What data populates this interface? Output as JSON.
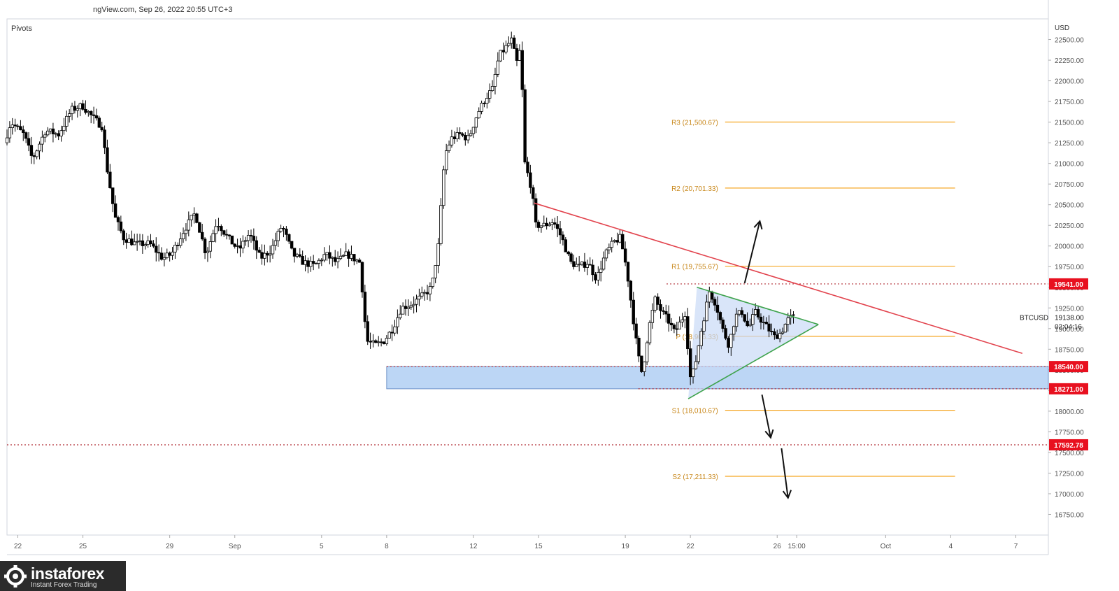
{
  "header": {
    "source_text": "ngView.com, Sep 26, 2022 20:55 UTC+3",
    "indicator": "Pivots"
  },
  "brand": {
    "name": "instaforex",
    "tagline": "Instant Forex Trading"
  },
  "colors": {
    "up": "#ffffff",
    "down": "#000000",
    "pivot": "#f5a623",
    "resistance_line": "#e2434d",
    "triangle_line": "#3fa34d",
    "zone_fill": "#bcd6f5",
    "level_badge": "#e8101f"
  },
  "chart_data": {
    "type": "candlestick",
    "symbol": "BTCUSD",
    "last_price": "19138.00",
    "countdown": "02:04:16",
    "currency": "USD",
    "y_ticks": [
      16750,
      17000,
      17250,
      17500,
      17750,
      18000,
      18250,
      18500,
      18750,
      19000,
      19250,
      19500,
      19750,
      20000,
      20250,
      20500,
      20750,
      21000,
      21250,
      21500,
      21750,
      22000,
      22250,
      22500
    ],
    "ylim": [
      16500,
      22750
    ],
    "x_ticks": [
      {
        "label": "22",
        "day": -1
      },
      {
        "label": "25",
        "day": 2
      },
      {
        "label": "29",
        "day": 6
      },
      {
        "label": "Sep",
        "day": 9
      },
      {
        "label": "5",
        "day": 13
      },
      {
        "label": "8",
        "day": 16
      },
      {
        "label": "12",
        "day": 20
      },
      {
        "label": "15",
        "day": 23
      },
      {
        "label": "19",
        "day": 27
      },
      {
        "label": "22",
        "day": 30
      },
      {
        "label": "26",
        "day": 34
      },
      {
        "label": "15:00",
        "day": 34.9
      },
      {
        "label": "Oct",
        "day": 39
      },
      {
        "label": "4",
        "day": 42
      },
      {
        "label": "7",
        "day": 45
      }
    ],
    "xlim": [
      -1.5,
      46.5
    ],
    "price_path": [
      [
        -1.5,
        21250
      ],
      [
        -1.2,
        21500
      ],
      [
        -0.6,
        21350
      ],
      [
        -0.2,
        21050
      ],
      [
        0.4,
        21400
      ],
      [
        1.0,
        21350
      ],
      [
        1.6,
        21650
      ],
      [
        2.1,
        21700
      ],
      [
        2.6,
        21550
      ],
      [
        3.0,
        21450
      ],
      [
        3.2,
        21000
      ],
      [
        3.6,
        20350
      ],
      [
        4.0,
        20100
      ],
      [
        4.6,
        20020
      ],
      [
        5.2,
        20030
      ],
      [
        5.8,
        19850
      ],
      [
        6.2,
        19900
      ],
      [
        6.8,
        20200
      ],
      [
        7.3,
        20400
      ],
      [
        7.8,
        19900
      ],
      [
        8.3,
        20300
      ],
      [
        8.8,
        20100
      ],
      [
        9.3,
        19950
      ],
      [
        9.8,
        20150
      ],
      [
        10.3,
        19850
      ],
      [
        10.8,
        19950
      ],
      [
        11.3,
        20250
      ],
      [
        11.8,
        19900
      ],
      [
        12.3,
        19800
      ],
      [
        12.8,
        19760
      ],
      [
        13.3,
        19900
      ],
      [
        13.8,
        19800
      ],
      [
        14.3,
        19900
      ],
      [
        14.6,
        19850
      ],
      [
        14.9,
        19800
      ],
      [
        15.2,
        18850
      ],
      [
        15.6,
        18800
      ],
      [
        16.0,
        18850
      ],
      [
        16.4,
        19000
      ],
      [
        16.8,
        19250
      ],
      [
        17.3,
        19300
      ],
      [
        17.8,
        19400
      ],
      [
        18.2,
        19500
      ],
      [
        18.5,
        20000
      ],
      [
        18.8,
        21100
      ],
      [
        19.1,
        21300
      ],
      [
        19.5,
        21350
      ],
      [
        19.9,
        21300
      ],
      [
        20.3,
        21600
      ],
      [
        20.7,
        21800
      ],
      [
        21.0,
        21900
      ],
      [
        21.3,
        22300
      ],
      [
        21.6,
        22400
      ],
      [
        21.9,
        22500
      ],
      [
        22.1,
        22200
      ],
      [
        22.3,
        22400
      ],
      [
        22.5,
        21000
      ],
      [
        22.8,
        20700
      ],
      [
        23.0,
        20250
      ],
      [
        23.4,
        20250
      ],
      [
        23.8,
        20300
      ],
      [
        24.2,
        20100
      ],
      [
        24.6,
        19800
      ],
      [
        25.0,
        19750
      ],
      [
        25.4,
        19800
      ],
      [
        25.8,
        19600
      ],
      [
        26.2,
        19900
      ],
      [
        26.6,
        20050
      ],
      [
        26.9,
        20100
      ],
      [
        27.2,
        19700
      ],
      [
        27.5,
        19100
      ],
      [
        27.7,
        18700
      ],
      [
        27.9,
        18450
      ],
      [
        28.2,
        19000
      ],
      [
        28.5,
        19350
      ],
      [
        28.8,
        19200
      ],
      [
        29.1,
        19100
      ],
      [
        29.4,
        18950
      ],
      [
        29.7,
        19100
      ],
      [
        29.9,
        19200
      ],
      [
        30.1,
        18400
      ],
      [
        30.3,
        18500
      ],
      [
        30.6,
        18950
      ],
      [
        30.8,
        19200
      ],
      [
        31.0,
        19450
      ],
      [
        31.3,
        19300
      ],
      [
        31.6,
        19000
      ],
      [
        31.9,
        18800
      ],
      [
        32.2,
        19150
      ],
      [
        32.5,
        19200
      ],
      [
        32.8,
        19000
      ],
      [
        33.1,
        19200
      ],
      [
        33.4,
        19100
      ],
      [
        33.7,
        19000
      ],
      [
        34.0,
        18900
      ],
      [
        34.3,
        18950
      ],
      [
        34.6,
        19100
      ],
      [
        34.8,
        19138
      ]
    ],
    "overlays": {
      "pivots": [
        {
          "label": "R3 (21,500.67)",
          "value": 21500.67
        },
        {
          "label": "R2 (20,701.33)",
          "value": 20701.33
        },
        {
          "label": "R1 (19,755.67)",
          "value": 19755.67
        },
        {
          "label": "P (18,906.33)",
          "value": 18906.33
        },
        {
          "label": "S1 (18,010.67)",
          "value": 18010.67
        },
        {
          "label": "S2 (17,211.33)",
          "value": 17211.33
        }
      ],
      "pivot_x_range": [
        31.6,
        42.2
      ],
      "price_levels": [
        {
          "label": "19541.00",
          "value": 19541.0,
          "from_day": 28.9
        },
        {
          "label": "18540.00",
          "value": 18540.0,
          "from_day": 16.0
        },
        {
          "label": "18271.00",
          "value": 18271.0,
          "from_day": 27.6
        },
        {
          "label": "17592.78",
          "value": 17592.78,
          "from_day": -1.5
        }
      ],
      "support_zone": {
        "from_day": 16.0,
        "low": 18271.0,
        "high": 18540.0
      },
      "downtrend_line": [
        [
          22.8,
          20520
        ],
        [
          45.3,
          18700
        ]
      ],
      "triangle": {
        "apex": [
          35.9,
          19050
        ],
        "upper_start": [
          30.3,
          19500
        ],
        "lower_start": [
          29.9,
          18150
        ],
        "fill": "#c9daf7"
      },
      "arrows": [
        {
          "from": [
            32.5,
            19550
          ],
          "to": [
            33.2,
            20300
          ]
        },
        {
          "from": [
            33.3,
            18200
          ],
          "to": [
            33.7,
            17680
          ]
        },
        {
          "from": [
            34.2,
            17550
          ],
          "to": [
            34.5,
            16950
          ]
        }
      ]
    }
  }
}
